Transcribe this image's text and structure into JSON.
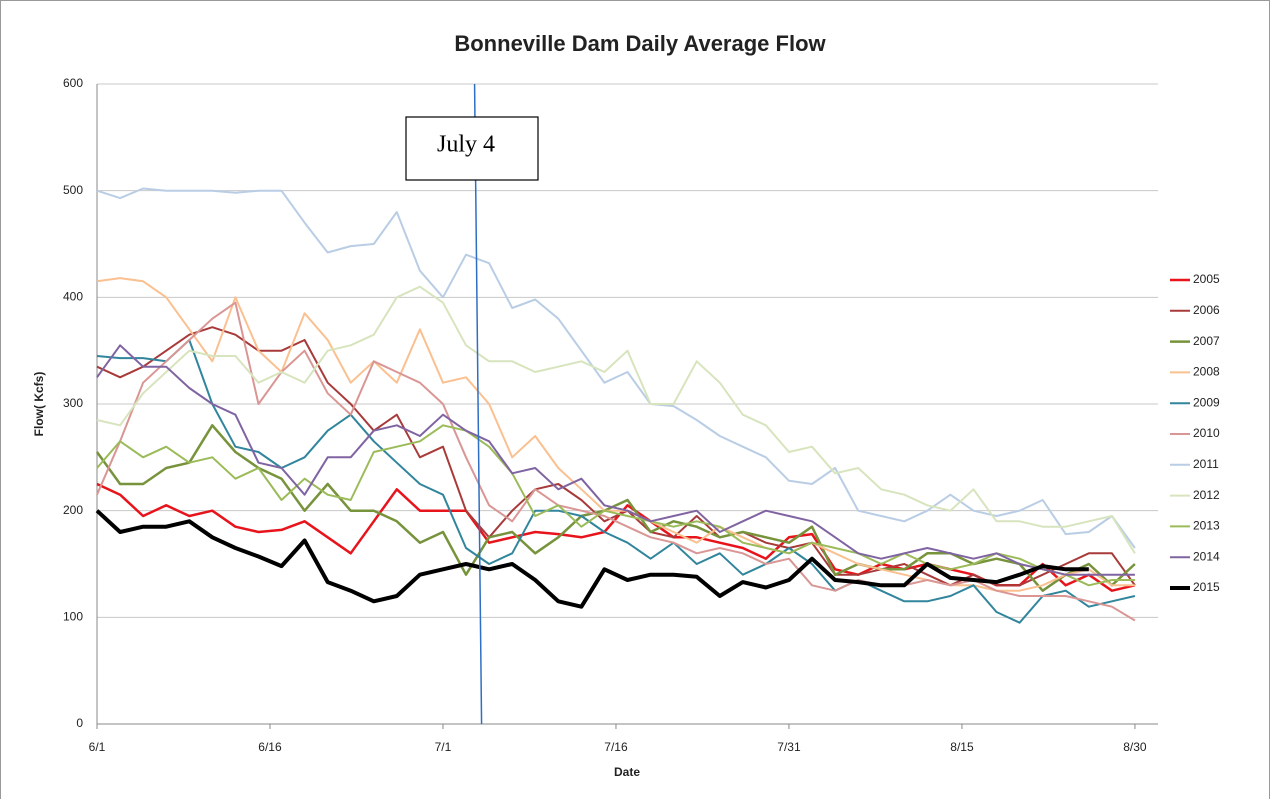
{
  "chart_data": {
    "type": "line",
    "title": "Bonneville Dam Daily Average Flow",
    "x_label": "Date",
    "y_label": "Flow( Kcfs)",
    "x": [
      0,
      2,
      4,
      6,
      8,
      10,
      12,
      14,
      16,
      18,
      20,
      22,
      24,
      26,
      28,
      30,
      32,
      34,
      36,
      38,
      40,
      42,
      44,
      46,
      48,
      50,
      52,
      54,
      56,
      58,
      60,
      62,
      64,
      66,
      68,
      70,
      72,
      74,
      76,
      78,
      80,
      82,
      84,
      86,
      88,
      90
    ],
    "xlim": [
      0,
      92
    ],
    "xticks": [
      {
        "value": 0,
        "label": "6/1"
      },
      {
        "value": 15,
        "label": "6/16"
      },
      {
        "value": 30,
        "label": "7/1"
      },
      {
        "value": 45,
        "label": "7/16"
      },
      {
        "value": 60,
        "label": "7/31"
      },
      {
        "value": 75,
        "label": "8/15"
      },
      {
        "value": 90,
        "label": "8/30"
      }
    ],
    "ylim": [
      0,
      600
    ],
    "yticks": [
      0,
      100,
      200,
      300,
      400,
      500,
      600
    ],
    "grid": true,
    "legend": "right",
    "annotation": {
      "text": "July 4",
      "x": 33
    },
    "series": [
      {
        "name": "2005",
        "color": "#e8141c",
        "width": 2.5,
        "values": [
          225,
          215,
          195,
          205,
          195,
          200,
          185,
          180,
          182,
          190,
          175,
          160,
          190,
          220,
          200,
          200,
          200,
          170,
          175,
          180,
          178,
          175,
          180,
          205,
          190,
          175,
          175,
          170,
          165,
          155,
          175,
          178,
          145,
          140,
          150,
          145,
          150,
          145,
          140,
          130,
          130,
          150,
          130,
          140,
          125,
          130
        ]
      },
      {
        "name": "2006",
        "color": "#a83a3a",
        "width": 2,
        "values": [
          335,
          325,
          335,
          350,
          365,
          372,
          365,
          350,
          350,
          360,
          320,
          300,
          275,
          290,
          250,
          260,
          200,
          175,
          200,
          220,
          225,
          210,
          190,
          200,
          180,
          175,
          195,
          175,
          180,
          170,
          165,
          170,
          140,
          140,
          145,
          150,
          140,
          130,
          140,
          130,
          130,
          140,
          150,
          160,
          160,
          130
        ]
      },
      {
        "name": "2007",
        "color": "#77933c",
        "width": 2.5,
        "values": [
          255,
          225,
          225,
          240,
          245,
          280,
          255,
          240,
          230,
          200,
          225,
          200,
          200,
          190,
          170,
          180,
          140,
          175,
          180,
          160,
          175,
          195,
          200,
          210,
          180,
          190,
          185,
          175,
          180,
          175,
          170,
          185,
          140,
          150,
          145,
          145,
          160,
          160,
          150,
          155,
          150,
          125,
          140,
          150,
          130,
          150
        ]
      },
      {
        "name": "2008",
        "color": "#fac090",
        "width": 2,
        "values": [
          415,
          418,
          415,
          400,
          370,
          340,
          400,
          350,
          330,
          385,
          360,
          320,
          340,
          320,
          370,
          320,
          325,
          300,
          250,
          270,
          240,
          220,
          200,
          200,
          190,
          180,
          170,
          185,
          175,
          165,
          160,
          170,
          160,
          150,
          145,
          140,
          135,
          130,
          130,
          125,
          125,
          130,
          140,
          145,
          130,
          130
        ]
      },
      {
        "name": "2009",
        "color": "#31859c",
        "width": 2,
        "values": [
          345,
          343,
          343,
          340,
          360,
          300,
          260,
          255,
          240,
          250,
          275,
          290,
          265,
          245,
          225,
          215,
          165,
          150,
          160,
          200,
          200,
          195,
          180,
          170,
          155,
          170,
          150,
          160,
          140,
          150,
          165,
          150,
          125,
          135,
          125,
          115,
          115,
          120,
          130,
          105,
          95,
          120,
          125,
          110,
          115,
          120
        ]
      },
      {
        "name": "2010",
        "color": "#d99694",
        "width": 2,
        "values": [
          215,
          265,
          320,
          340,
          360,
          380,
          395,
          300,
          330,
          350,
          310,
          290,
          340,
          330,
          320,
          300,
          250,
          205,
          190,
          220,
          205,
          200,
          195,
          185,
          175,
          170,
          160,
          165,
          160,
          150,
          155,
          130,
          125,
          135,
          130,
          130,
          135,
          130,
          135,
          125,
          120,
          120,
          120,
          115,
          110,
          97
        ]
      },
      {
        "name": "2011",
        "color": "#b9cde5",
        "width": 2,
        "values": [
          500,
          493,
          502,
          500,
          500,
          500,
          498,
          500,
          500,
          470,
          442,
          448,
          450,
          480,
          425,
          400,
          440,
          432,
          390,
          398,
          380,
          350,
          320,
          330,
          300,
          298,
          285,
          270,
          260,
          250,
          228,
          225,
          240,
          200,
          195,
          190,
          200,
          215,
          200,
          195,
          200,
          210,
          178,
          180,
          195,
          165
        ]
      },
      {
        "name": "2012",
        "color": "#d7e4bd",
        "width": 2,
        "values": [
          285,
          280,
          310,
          330,
          350,
          345,
          345,
          320,
          330,
          320,
          350,
          355,
          365,
          400,
          410,
          395,
          355,
          340,
          340,
          330,
          335,
          340,
          330,
          350,
          300,
          300,
          340,
          320,
          290,
          280,
          255,
          260,
          235,
          240,
          220,
          215,
          205,
          200,
          220,
          190,
          190,
          185,
          185,
          190,
          195,
          160
        ]
      },
      {
        "name": "2013",
        "color": "#9bbb59",
        "width": 2,
        "values": [
          240,
          265,
          250,
          260,
          245,
          250,
          230,
          240,
          210,
          230,
          215,
          210,
          255,
          260,
          265,
          280,
          275,
          260,
          235,
          195,
          205,
          185,
          200,
          195,
          190,
          185,
          190,
          185,
          170,
          165,
          160,
          170,
          165,
          160,
          150,
          160,
          150,
          145,
          150,
          160,
          155,
          145,
          140,
          130,
          135,
          135
        ]
      },
      {
        "name": "2014",
        "color": "#8064a2",
        "width": 2,
        "values": [
          325,
          355,
          335,
          335,
          315,
          300,
          290,
          245,
          240,
          215,
          250,
          250,
          275,
          280,
          270,
          290,
          275,
          265,
          235,
          240,
          220,
          230,
          205,
          200,
          190,
          195,
          200,
          180,
          190,
          200,
          195,
          190,
          175,
          160,
          155,
          160,
          165,
          160,
          155,
          160,
          150,
          145,
          140,
          140,
          140,
          140
        ]
      },
      {
        "name": "2015",
        "color": "#000000",
        "width": 4,
        "values": [
          200,
          180,
          185,
          185,
          190,
          175,
          165,
          157,
          148,
          172,
          133,
          125,
          115,
          120,
          140,
          145,
          150,
          145,
          150,
          135,
          115,
          110,
          145,
          135,
          140,
          140,
          138,
          120,
          133,
          128,
          135,
          155,
          135,
          133,
          130,
          130,
          150,
          137,
          135,
          133,
          140,
          148,
          145,
          145,
          null,
          null
        ]
      }
    ]
  }
}
